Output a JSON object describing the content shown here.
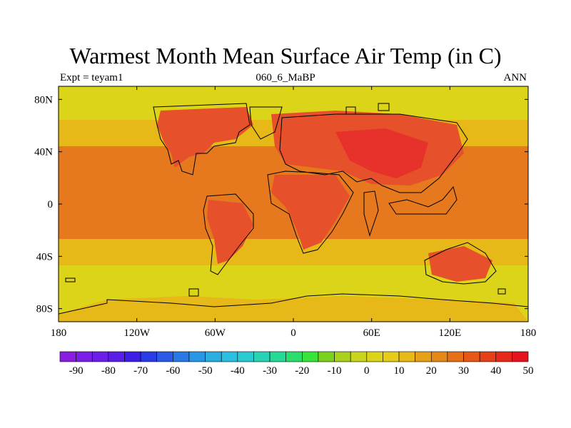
{
  "title": "Warmest Month Mean Surface Air Temp (in C)",
  "subtitle_left": "Expt = teyam1",
  "subtitle_center": "060_6_MaBP",
  "subtitle_right": "ANN",
  "axes": {
    "x_ticks": [
      {
        "value": -180,
        "label": "180"
      },
      {
        "value": -120,
        "label": "120W"
      },
      {
        "value": -60,
        "label": "60W"
      },
      {
        "value": 0,
        "label": "0"
      },
      {
        "value": 60,
        "label": "60E"
      },
      {
        "value": 120,
        "label": "120E"
      },
      {
        "value": 180,
        "label": "180"
      }
    ],
    "y_ticks": [
      {
        "value": 80,
        "label": "80N"
      },
      {
        "value": 40,
        "label": "40N"
      },
      {
        "value": 0,
        "label": "0"
      },
      {
        "value": -40,
        "label": "40S"
      },
      {
        "value": -80,
        "label": "80S"
      }
    ],
    "lon_range": [
      -180,
      180
    ],
    "lat_range": [
      -90,
      90
    ]
  },
  "colorbar": {
    "labels": [
      "-90",
      "-80",
      "-70",
      "-60",
      "-50",
      "-40",
      "-30",
      "-20",
      "-10",
      "0",
      "10",
      "20",
      "30",
      "40",
      "50"
    ],
    "colors": [
      "#8a1ee0",
      "#7a1ee6",
      "#6a1ee8",
      "#5a1ee8",
      "#3c1ee6",
      "#2a3ce6",
      "#2a5ae6",
      "#2a78e6",
      "#2a96e6",
      "#2aaee0",
      "#2abee0",
      "#2acad2",
      "#28d2b4",
      "#26da96",
      "#2ade6e",
      "#3ae23c",
      "#7ad21e",
      "#a8d21e",
      "#c8d41e",
      "#dcd418",
      "#e6cc18",
      "#e6b818",
      "#e6a018",
      "#e68818",
      "#e67018",
      "#e65818",
      "#e64018",
      "#e62818",
      "#e6141e"
    ]
  },
  "map_colors": {
    "band_10_20": "#d8d418",
    "band_20_30": "#e6b818",
    "band_30_40": "#e6781e",
    "band_40_50": "#e6502a",
    "band_50_plus": "#e6322a"
  }
}
